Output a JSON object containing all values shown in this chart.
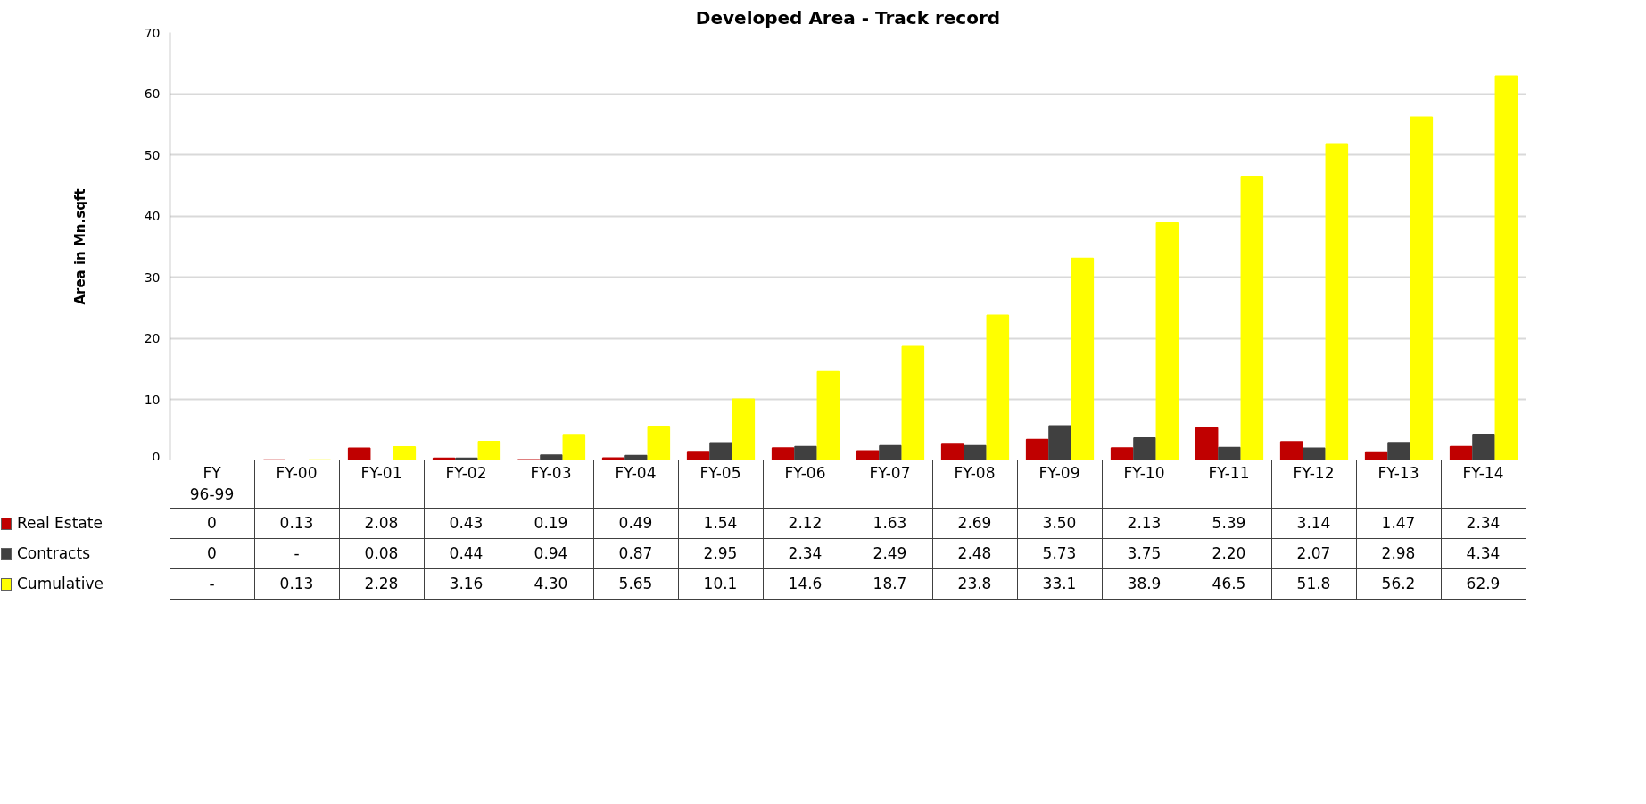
{
  "chart_data": {
    "type": "bar",
    "title": "Developed Area - Track record",
    "ylabel": "Area in Mn.sqft",
    "categories": [
      "FY 96-99",
      "FY-00",
      "FY-01",
      "FY-02",
      "FY-03",
      "FY-04",
      "FY-05",
      "FY-06",
      "FY-07",
      "FY-08",
      "FY-09",
      "FY-10",
      "FY-11",
      "FY-12",
      "FY-13",
      "FY-14"
    ],
    "series": [
      {
        "name": "Real Estate",
        "color": "#c00000",
        "values": [
          0,
          0.13,
          2.08,
          0.43,
          0.19,
          0.49,
          1.54,
          2.12,
          1.63,
          2.69,
          3.5,
          2.13,
          5.39,
          3.14,
          1.47,
          2.34
        ],
        "value_labels": [
          "0",
          "0.13",
          "2.08",
          "0.43",
          "0.19",
          "0.49",
          "1.54",
          "2.12",
          "1.63",
          "2.69",
          "3.50",
          "2.13",
          "5.39",
          "3.14",
          "1.47",
          "2.34"
        ]
      },
      {
        "name": "Contracts",
        "color": "#404040",
        "values": [
          0,
          null,
          0.08,
          0.44,
          0.94,
          0.87,
          2.95,
          2.34,
          2.49,
          2.48,
          5.73,
          3.75,
          2.2,
          2.07,
          2.98,
          4.34
        ],
        "value_labels": [
          "0",
          "-",
          "0.08",
          "0.44",
          "0.94",
          "0.87",
          "2.95",
          "2.34",
          "2.49",
          "2.48",
          "5.73",
          "3.75",
          "2.20",
          "2.07",
          "2.98",
          "4.34"
        ]
      },
      {
        "name": "Cumulative",
        "color": "#ffff00",
        "values": [
          null,
          0.13,
          2.28,
          3.16,
          4.3,
          5.65,
          10.1,
          14.6,
          18.7,
          23.8,
          33.1,
          38.9,
          46.5,
          51.8,
          56.2,
          62.9
        ],
        "value_labels": [
          "-",
          "0.13",
          "2.28",
          "3.16",
          "4.30",
          "5.65",
          "10.1",
          "14.6",
          "18.7",
          "23.8",
          "33.1",
          "38.9",
          "46.5",
          "51.8",
          "56.2",
          "62.9"
        ]
      }
    ],
    "legend": "bottom left",
    "ylim": [
      0,
      70
    ],
    "yticks": [
      0,
      10,
      20,
      30,
      40,
      50,
      60,
      70
    ],
    "grid": "y"
  }
}
